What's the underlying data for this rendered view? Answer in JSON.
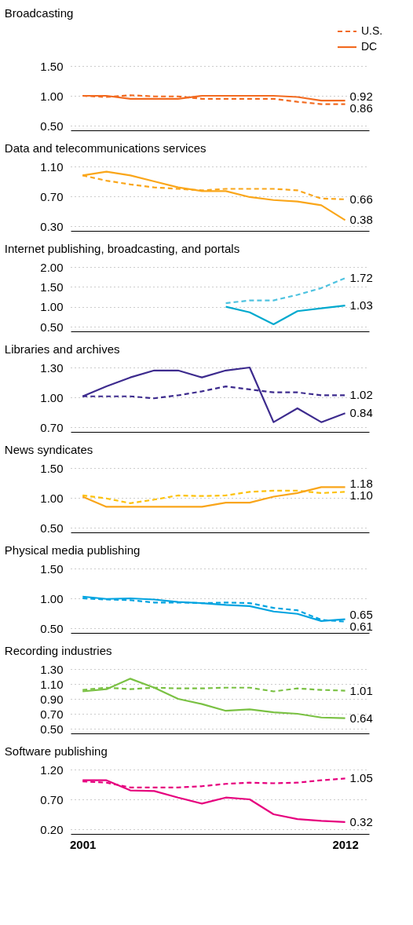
{
  "chart_data": [
    {
      "type": "line",
      "title": "Broadcasting",
      "x": [
        2001,
        2002,
        2003,
        2004,
        2005,
        2006,
        2007,
        2008,
        2009,
        2010,
        2011,
        2012
      ],
      "xlim": [
        2000.5,
        2013
      ],
      "xticks": [
        2001,
        2012
      ],
      "tick_labels": "y",
      "ylim": [
        0.5,
        1.5
      ],
      "yticks": [
        {
          "value": 0.5,
          "label": "0.50"
        },
        {
          "value": 1.0,
          "label": "1.00"
        },
        {
          "value": 1.5,
          "label": "1.50"
        }
      ],
      "grid": "y",
      "legend": "top right",
      "series": [
        {
          "name": "U.S.",
          "color": "#f26b21",
          "line_style": "dashed",
          "values": [
            1.0,
            0.98,
            1.01,
            0.99,
            0.99,
            0.95,
            0.95,
            0.95,
            0.95,
            0.9,
            0.86,
            0.86
          ],
          "value_labels": [
            null,
            null,
            null,
            null,
            null,
            null,
            null,
            null,
            null,
            null,
            null,
            "0.86"
          ]
        },
        {
          "name": "DC",
          "color": "#f26b21",
          "line_style": "solid",
          "values": [
            1.0,
            1.0,
            0.95,
            0.95,
            0.95,
            1.0,
            1.0,
            1.0,
            1.0,
            0.98,
            0.92,
            0.92
          ],
          "value_labels": [
            null,
            null,
            null,
            null,
            null,
            null,
            null,
            null,
            null,
            null,
            null,
            "0.92"
          ]
        }
      ]
    },
    {
      "type": "line",
      "title": "Data and telecommunications services",
      "x": [
        2001,
        2002,
        2003,
        2004,
        2005,
        2006,
        2007,
        2008,
        2009,
        2010,
        2011,
        2012
      ],
      "xlim": [
        2000.5,
        2013
      ],
      "tick_labels": "y",
      "ylim": [
        0.3,
        1.1
      ],
      "yticks": [
        {
          "value": 0.3,
          "label": "0.30"
        },
        {
          "value": 0.7,
          "label": "0.70"
        },
        {
          "value": 1.1,
          "label": "1.10"
        }
      ],
      "grid": "y",
      "series": [
        {
          "color": "#faa61a",
          "line_style": "dashed",
          "values": [
            0.98,
            0.91,
            0.86,
            0.82,
            0.8,
            0.78,
            0.8,
            0.8,
            0.8,
            0.78,
            0.67,
            0.66
          ],
          "value_labels": [
            null,
            null,
            null,
            null,
            null,
            null,
            null,
            null,
            null,
            null,
            null,
            "0.66"
          ]
        },
        {
          "color": "#faa61a",
          "line_style": "solid",
          "values": [
            0.98,
            1.03,
            0.98,
            0.9,
            0.82,
            0.77,
            0.77,
            0.69,
            0.65,
            0.63,
            0.58,
            0.38
          ],
          "value_labels": [
            null,
            null,
            null,
            null,
            null,
            null,
            null,
            null,
            null,
            null,
            null,
            "0.38"
          ]
        }
      ]
    },
    {
      "type": "line",
      "title": "Internet publishing, broadcasting, and portals",
      "xlim": [
        2000.5,
        2013
      ],
      "tick_labels": "y",
      "ylim": [
        0.5,
        2.0
      ],
      "yticks": [
        {
          "value": 0.5,
          "label": "0.50"
        },
        {
          "value": 1.0,
          "label": "1.00"
        },
        {
          "value": 1.5,
          "label": "1.50"
        },
        {
          "value": 2.0,
          "label": "2.00"
        }
      ],
      "grid": "y",
      "series": [
        {
          "color": "#4fc3e0",
          "line_style": "dashed",
          "x": [
            2007,
            2008,
            2009,
            2010,
            2011,
            2012
          ],
          "values": [
            1.09,
            1.16,
            1.16,
            1.3,
            1.47,
            1.72
          ],
          "value_labels": [
            null,
            null,
            null,
            null,
            null,
            "1.72"
          ]
        },
        {
          "color": "#00a9ce",
          "line_style": "solid",
          "x": [
            2007,
            2008,
            2009,
            2010,
            2011,
            2012
          ],
          "values": [
            1.0,
            0.86,
            0.56,
            0.89,
            0.96,
            1.03
          ],
          "value_labels": [
            null,
            null,
            null,
            null,
            null,
            "1.03"
          ]
        }
      ]
    },
    {
      "type": "line",
      "title": "Libraries and archives",
      "x": [
        2001,
        2002,
        2003,
        2004,
        2005,
        2006,
        2007,
        2008,
        2009,
        2010,
        2011,
        2012
      ],
      "xlim": [
        2000.5,
        2013
      ],
      "tick_labels": "y",
      "ylim": [
        0.7,
        1.3
      ],
      "yticks": [
        {
          "value": 0.7,
          "label": "0.70"
        },
        {
          "value": 1.0,
          "label": "1.00"
        },
        {
          "value": 1.3,
          "label": "1.30"
        }
      ],
      "grid": "y",
      "series": [
        {
          "color": "#3d2b8e",
          "line_style": "dashed",
          "values": [
            1.01,
            1.01,
            1.01,
            0.99,
            1.02,
            1.06,
            1.11,
            1.08,
            1.05,
            1.05,
            1.02,
            1.02
          ],
          "value_labels": [
            null,
            null,
            null,
            null,
            null,
            null,
            null,
            null,
            null,
            null,
            null,
            "1.02"
          ]
        },
        {
          "color": "#3d2b8e",
          "line_style": "solid",
          "values": [
            1.01,
            1.11,
            1.2,
            1.27,
            1.27,
            1.2,
            1.27,
            1.3,
            0.75,
            0.89,
            0.75,
            0.84
          ],
          "value_labels": [
            null,
            null,
            null,
            null,
            null,
            null,
            null,
            null,
            null,
            null,
            null,
            "0.84"
          ]
        }
      ]
    },
    {
      "type": "line",
      "title": "News syndicates",
      "x": [
        2001,
        2002,
        2003,
        2004,
        2005,
        2006,
        2007,
        2008,
        2009,
        2010,
        2011,
        2012
      ],
      "xlim": [
        2000.5,
        2013
      ],
      "tick_labels": "y",
      "ylim": [
        0.5,
        1.5
      ],
      "yticks": [
        {
          "value": 0.5,
          "label": "0.50"
        },
        {
          "value": 1.0,
          "label": "1.00"
        },
        {
          "value": 1.5,
          "label": "1.50"
        }
      ],
      "grid": "y",
      "series": [
        {
          "color": "#fdc20c",
          "line_style": "dashed",
          "values": [
            1.04,
            0.99,
            0.91,
            0.97,
            1.04,
            1.03,
            1.04,
            1.1,
            1.12,
            1.12,
            1.08,
            1.1
          ],
          "value_labels": [
            null,
            null,
            null,
            null,
            null,
            null,
            null,
            null,
            null,
            null,
            null,
            "1.10"
          ]
        },
        {
          "color": "#f9a51a",
          "line_style": "solid",
          "values": [
            1.02,
            0.85,
            0.85,
            0.85,
            0.85,
            0.85,
            0.92,
            0.92,
            1.02,
            1.08,
            1.18,
            1.18
          ],
          "value_labels": [
            null,
            null,
            null,
            null,
            null,
            null,
            null,
            null,
            null,
            null,
            null,
            "1.18"
          ]
        }
      ]
    },
    {
      "type": "line",
      "title": "Physical media publishing",
      "x": [
        2001,
        2002,
        2003,
        2004,
        2005,
        2006,
        2007,
        2008,
        2009,
        2010,
        2011,
        2012
      ],
      "xlim": [
        2000.5,
        2013
      ],
      "tick_labels": "y",
      "ylim": [
        0.5,
        1.5
      ],
      "yticks": [
        {
          "value": 0.5,
          "label": "0.50"
        },
        {
          "value": 1.0,
          "label": "1.00"
        },
        {
          "value": 1.5,
          "label": "1.50"
        }
      ],
      "grid": "y",
      "series": [
        {
          "color": "#00a3e0",
          "line_style": "dashed",
          "values": [
            1.0,
            0.98,
            0.97,
            0.93,
            0.93,
            0.92,
            0.93,
            0.92,
            0.84,
            0.8,
            0.64,
            0.61
          ],
          "value_labels": [
            null,
            null,
            null,
            null,
            null,
            null,
            null,
            null,
            null,
            null,
            null,
            "0.61"
          ]
        },
        {
          "color": "#00a3e0",
          "line_style": "solid",
          "values": [
            1.03,
            0.99,
            1.0,
            0.98,
            0.94,
            0.92,
            0.89,
            0.87,
            0.78,
            0.74,
            0.62,
            0.65
          ],
          "value_labels": [
            null,
            null,
            null,
            null,
            null,
            null,
            null,
            null,
            null,
            null,
            null,
            "0.65"
          ]
        }
      ]
    },
    {
      "type": "line",
      "title": "Recording industries",
      "x": [
        2001,
        2002,
        2003,
        2004,
        2005,
        2006,
        2007,
        2008,
        2009,
        2010,
        2011,
        2012
      ],
      "xlim": [
        2000.5,
        2013
      ],
      "tick_labels": "y",
      "ylim": [
        0.5,
        1.3
      ],
      "yticks": [
        {
          "value": 0.5,
          "label": "0.50"
        },
        {
          "value": 0.7,
          "label": "0.70"
        },
        {
          "value": 0.9,
          "label": "0.90"
        },
        {
          "value": 1.1,
          "label": "1.10"
        },
        {
          "value": 1.3,
          "label": "1.30"
        }
      ],
      "grid": "y",
      "series": [
        {
          "color": "#7ac143",
          "line_style": "dashed",
          "values": [
            1.02,
            1.05,
            1.03,
            1.05,
            1.04,
            1.04,
            1.05,
            1.05,
            1.0,
            1.04,
            1.02,
            1.01
          ],
          "value_labels": [
            null,
            null,
            null,
            null,
            null,
            null,
            null,
            null,
            null,
            null,
            null,
            "1.01"
          ]
        },
        {
          "color": "#7ac143",
          "line_style": "solid",
          "values": [
            1.0,
            1.03,
            1.17,
            1.05,
            0.9,
            0.83,
            0.74,
            0.76,
            0.72,
            0.7,
            0.65,
            0.64
          ],
          "value_labels": [
            null,
            null,
            null,
            null,
            null,
            null,
            null,
            null,
            null,
            null,
            null,
            "0.64"
          ]
        }
      ]
    },
    {
      "type": "line",
      "title": "Software publishing",
      "x": [
        2001,
        2002,
        2003,
        2004,
        2005,
        2006,
        2007,
        2008,
        2009,
        2010,
        2011,
        2012
      ],
      "xlim": [
        2000.5,
        2013
      ],
      "xticks": [
        2001,
        2012
      ],
      "ylim": [
        0.2,
        1.2
      ],
      "yticks": [
        {
          "value": 0.2,
          "label": "0.20"
        },
        {
          "value": 0.7,
          "label": "0.70"
        },
        {
          "value": 1.2,
          "label": "1.20"
        }
      ],
      "grid": "y",
      "series": [
        {
          "color": "#e6007e",
          "line_style": "dashed",
          "values": [
            1.0,
            0.98,
            0.9,
            0.9,
            0.9,
            0.92,
            0.96,
            0.98,
            0.97,
            0.98,
            1.02,
            1.05
          ],
          "value_labels": [
            null,
            null,
            null,
            null,
            null,
            null,
            null,
            null,
            null,
            null,
            null,
            "1.05"
          ]
        },
        {
          "color": "#e6007e",
          "line_style": "solid",
          "values": [
            1.02,
            1.02,
            0.85,
            0.84,
            0.73,
            0.63,
            0.73,
            0.7,
            0.45,
            0.37,
            0.34,
            0.32
          ],
          "value_labels": [
            null,
            null,
            null,
            null,
            null,
            null,
            null,
            null,
            null,
            null,
            null,
            "0.32"
          ]
        }
      ]
    }
  ]
}
